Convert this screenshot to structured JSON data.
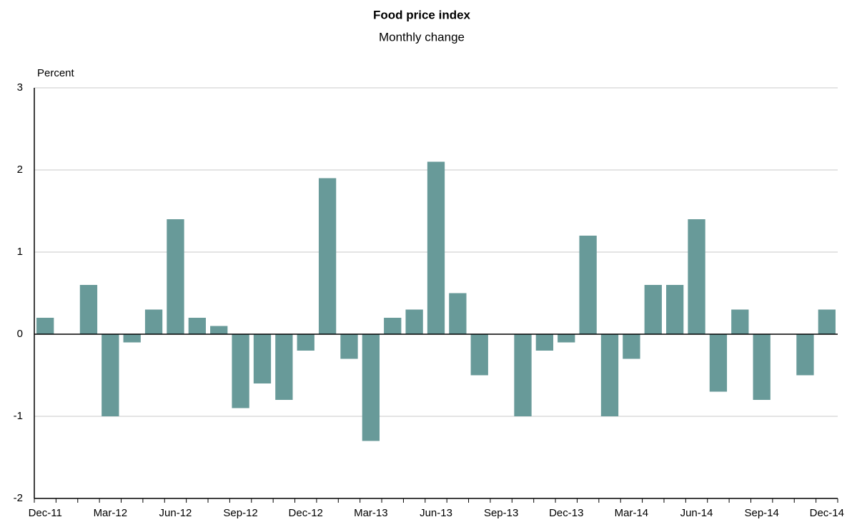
{
  "chart_data": {
    "type": "bar",
    "title": "Food price index",
    "subtitle": "Monthly change",
    "y_label": "Percent",
    "categories": [
      "Dec-11",
      null,
      null,
      "Mar-12",
      null,
      null,
      "Jun-12",
      null,
      null,
      "Sep-12",
      null,
      null,
      "Dec-12",
      null,
      null,
      "Mar-13",
      null,
      null,
      "Jun-13",
      null,
      null,
      "Sep-13",
      null,
      null,
      "Dec-13",
      null,
      null,
      "Mar-14",
      null,
      null,
      "Jun-14",
      null,
      null,
      "Sep-14",
      null,
      null,
      "Dec-14"
    ],
    "values": [
      0.2,
      0,
      0.6,
      -1.0,
      -0.1,
      0.3,
      1.4,
      0.2,
      0.1,
      -0.9,
      -0.6,
      -0.8,
      -0.2,
      1.9,
      -0.3,
      -1.3,
      0.2,
      0.3,
      2.1,
      0.5,
      -0.5,
      0,
      -1.0,
      -0.2,
      -0.1,
      1.2,
      -1.0,
      -0.3,
      0.6,
      0.6,
      1.4,
      -0.7,
      0.3,
      -0.8,
      0,
      -0.5,
      0.3
    ],
    "color": "#689a99",
    "ylim": [
      -2,
      3
    ],
    "yticks": [
      -2,
      -1,
      0,
      1,
      2,
      3
    ],
    "grid": true
  }
}
